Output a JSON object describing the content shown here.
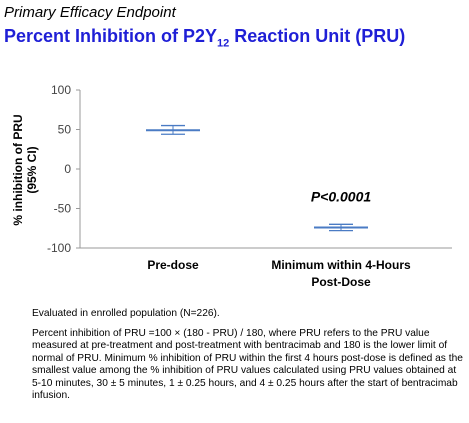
{
  "header": {
    "subtitle": "Primary Efficacy Endpoint",
    "title_main": "Percent Inhibition of P2Y",
    "title_sub": "12",
    "title_tail": " Reaction Unit (PRU)"
  },
  "colors": {
    "title": "#1f1fd6",
    "series": "#4a7bc4"
  },
  "chart_data": {
    "type": "scatter",
    "title": "Percent Inhibition of P2Y12 Reaction Unit (PRU)",
    "ylabel_line1": "% inhibition of PRU",
    "ylabel_line2": "(95% CI)",
    "xlabel": "",
    "ylim": [
      -100,
      100
    ],
    "yticks": [
      100,
      50,
      0,
      -50,
      -100
    ],
    "ytick_labels": [
      "100",
      "50",
      "0",
      "-50",
      "-100"
    ],
    "grid": false,
    "legend": "none",
    "categories": [
      {
        "line1": "Pre-dose",
        "line2": ""
      },
      {
        "line1": "Minimum within 4-Hours",
        "line2": "Post-Dose"
      }
    ],
    "series": [
      {
        "name": "",
        "values": [
          49,
          -74
        ],
        "ci_low": [
          44,
          -78
        ],
        "ci_high": [
          55,
          -70
        ]
      }
    ],
    "annotation": {
      "text": "P<0.0001",
      "category_index": 1,
      "y": -35
    }
  },
  "footnotes": {
    "population": "Evaluated in enrolled population (N=226).",
    "definition": "Percent inhibition of PRU =100 × (180 - PRU) / 180, where PRU refers to the PRU value measured at pre-treatment and post-treatment with bentracimab and 180 is the lower limit of normal of PRU. Minimum % inhibition of PRU within the first 4 hours post-dose is defined as the smallest value among the % inhibition of PRU values calculated using PRU values obtained at 5-10 minutes, 30 ± 5 minutes, 1 ± 0.25 hours, and 4 ± 0.25 hours after the start of bentracimab infusion."
  }
}
